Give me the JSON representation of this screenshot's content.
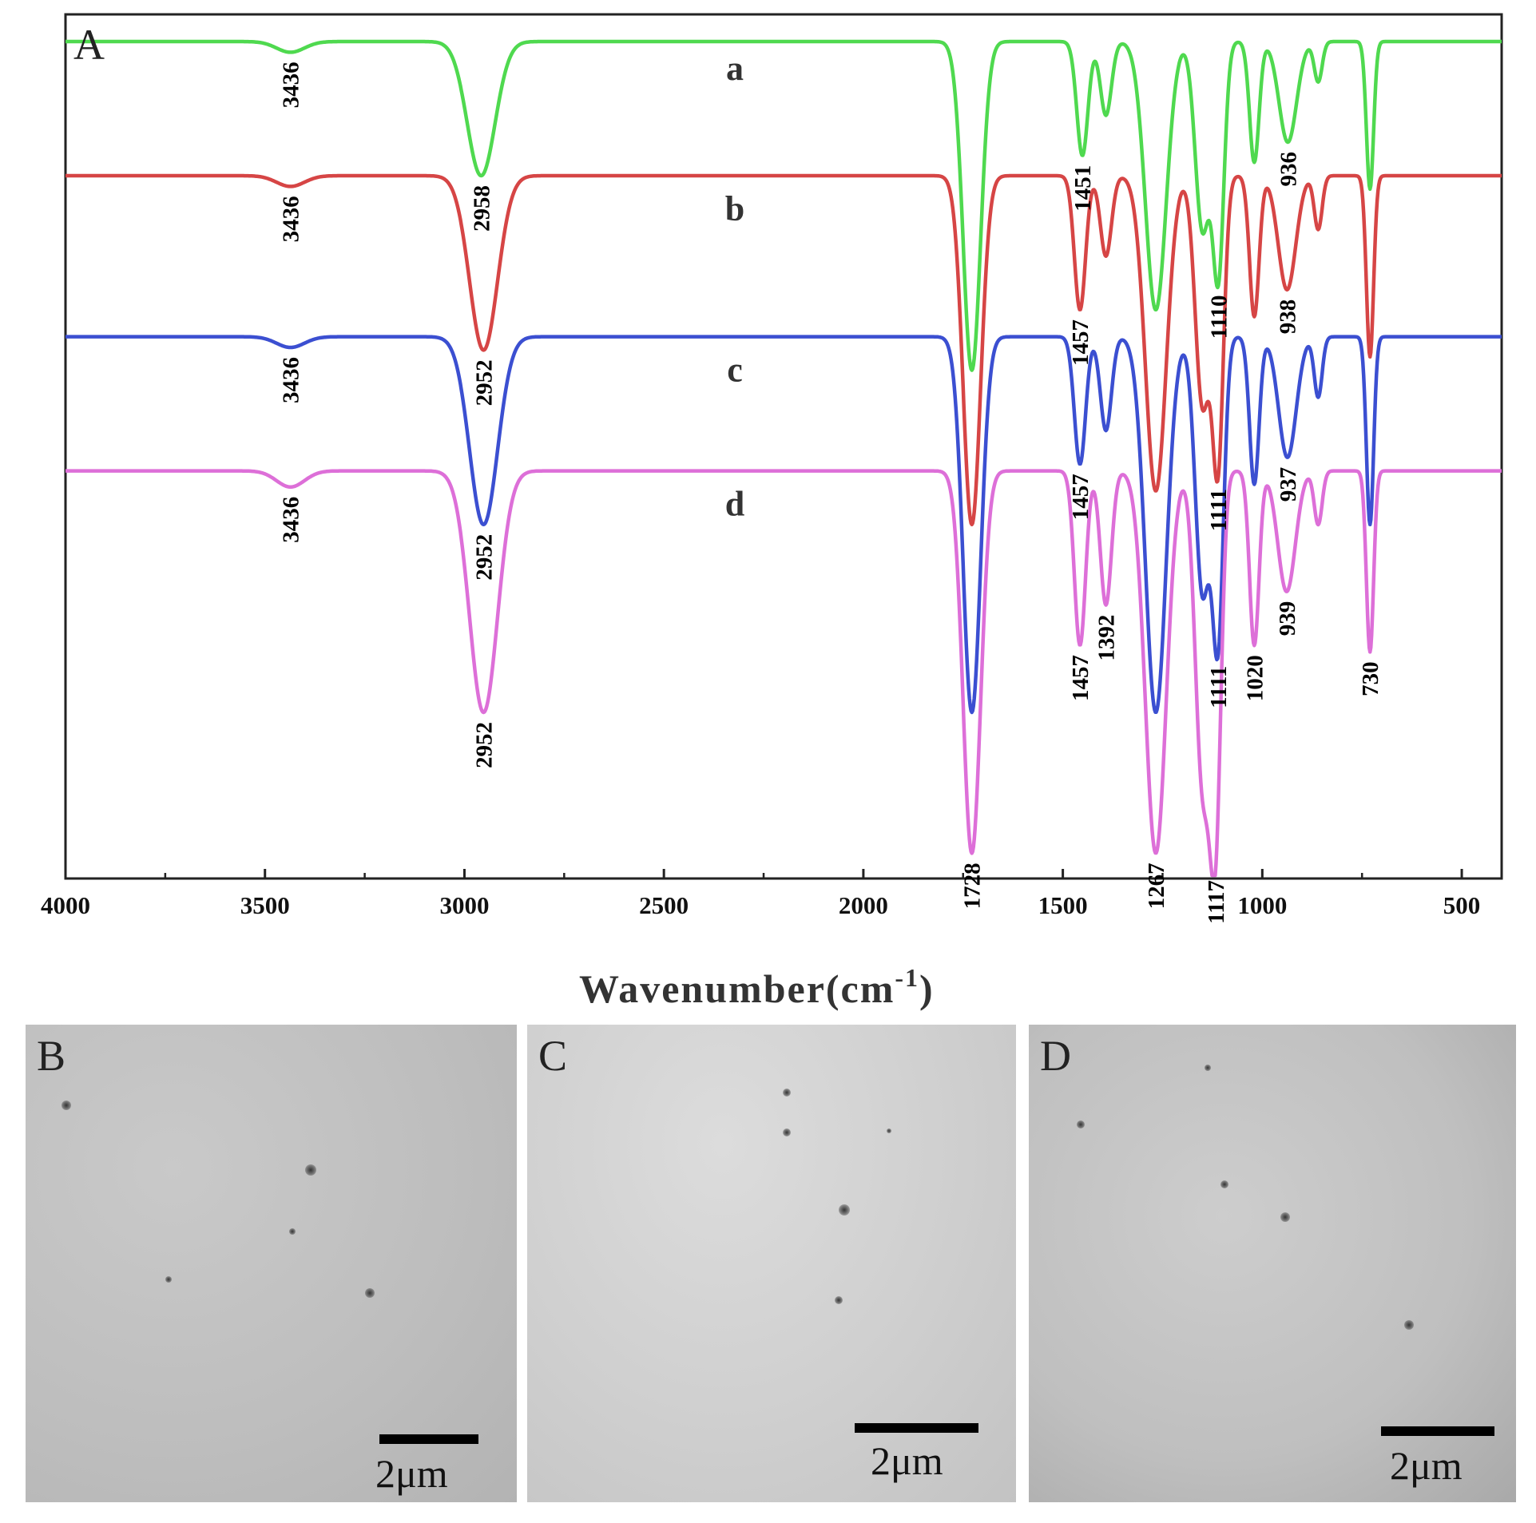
{
  "chart_data": {
    "type": "line",
    "panel_label": "A",
    "xlabel_main": "Wavenumber(cm",
    "xlabel_sup": "-1",
    "xlabel_close": ")",
    "xlim": [
      4000,
      400
    ],
    "x_ticks": [
      4000,
      3500,
      3000,
      2500,
      2000,
      1500,
      1000,
      500
    ],
    "series": [
      {
        "name": "a",
        "color": "#4fd94f",
        "base": 0.0,
        "peaks": [
          {
            "x": 3436,
            "depth": 0.08,
            "width": 35
          },
          {
            "x": 2958,
            "depth": 1.0,
            "width": 35
          },
          {
            "x": 1728,
            "depth": 2.45,
            "width": 22
          },
          {
            "x": 1451,
            "depth": 0.85,
            "width": 14
          },
          {
            "x": 1392,
            "depth": 0.55,
            "width": 14
          },
          {
            "x": 1267,
            "depth": 2.0,
            "width": 26
          },
          {
            "x": 1150,
            "depth": 1.4,
            "width": 18
          },
          {
            "x": 1110,
            "depth": 1.7,
            "width": 14
          },
          {
            "x": 1020,
            "depth": 0.9,
            "width": 12
          },
          {
            "x": 936,
            "depth": 0.75,
            "width": 22
          },
          {
            "x": 860,
            "depth": 0.3,
            "width": 10
          },
          {
            "x": 730,
            "depth": 1.1,
            "width": 9
          }
        ]
      },
      {
        "name": "b",
        "color": "#d64545",
        "base": 1.0,
        "peaks": [
          {
            "x": 3436,
            "depth": 0.08,
            "width": 35
          },
          {
            "x": 2952,
            "depth": 1.3,
            "width": 35
          },
          {
            "x": 1728,
            "depth": 2.6,
            "width": 22
          },
          {
            "x": 1457,
            "depth": 1.0,
            "width": 14
          },
          {
            "x": 1392,
            "depth": 0.6,
            "width": 14
          },
          {
            "x": 1267,
            "depth": 2.35,
            "width": 26
          },
          {
            "x": 1150,
            "depth": 1.7,
            "width": 18
          },
          {
            "x": 1111,
            "depth": 2.1,
            "width": 14
          },
          {
            "x": 1020,
            "depth": 1.05,
            "width": 12
          },
          {
            "x": 938,
            "depth": 0.85,
            "width": 22
          },
          {
            "x": 860,
            "depth": 0.4,
            "width": 10
          },
          {
            "x": 730,
            "depth": 1.35,
            "width": 9
          }
        ]
      },
      {
        "name": "c",
        "color": "#3b4fd1",
        "base": 2.2,
        "peaks": [
          {
            "x": 3436,
            "depth": 0.08,
            "width": 35
          },
          {
            "x": 2952,
            "depth": 1.4,
            "width": 35
          },
          {
            "x": 1728,
            "depth": 2.8,
            "width": 22
          },
          {
            "x": 1457,
            "depth": 0.95,
            "width": 14
          },
          {
            "x": 1392,
            "depth": 0.7,
            "width": 14
          },
          {
            "x": 1267,
            "depth": 2.8,
            "width": 26
          },
          {
            "x": 1150,
            "depth": 1.9,
            "width": 18
          },
          {
            "x": 1111,
            "depth": 2.2,
            "width": 14
          },
          {
            "x": 1020,
            "depth": 1.1,
            "width": 12
          },
          {
            "x": 937,
            "depth": 0.9,
            "width": 22
          },
          {
            "x": 860,
            "depth": 0.45,
            "width": 10
          },
          {
            "x": 730,
            "depth": 1.4,
            "width": 9
          }
        ]
      },
      {
        "name": "d",
        "color": "#dd6fd8",
        "base": 3.2,
        "peaks": [
          {
            "x": 3436,
            "depth": 0.12,
            "width": 35
          },
          {
            "x": 2952,
            "depth": 1.8,
            "width": 35
          },
          {
            "x": 1728,
            "depth": 2.85,
            "width": 22
          },
          {
            "x": 1457,
            "depth": 1.3,
            "width": 14
          },
          {
            "x": 1392,
            "depth": 1.0,
            "width": 14
          },
          {
            "x": 1267,
            "depth": 2.85,
            "width": 26
          },
          {
            "x": 1150,
            "depth": 2.3,
            "width": 18
          },
          {
            "x": 1117,
            "depth": 2.55,
            "width": 14
          },
          {
            "x": 1020,
            "depth": 1.3,
            "width": 12
          },
          {
            "x": 939,
            "depth": 0.9,
            "width": 22
          },
          {
            "x": 860,
            "depth": 0.4,
            "width": 10
          },
          {
            "x": 730,
            "depth": 1.35,
            "width": 9
          }
        ]
      }
    ],
    "peak_labels": [
      {
        "text": "3436",
        "x": 3436,
        "series": "a"
      },
      {
        "text": "3436",
        "x": 3436,
        "series": "b"
      },
      {
        "text": "3436",
        "x": 3436,
        "series": "c"
      },
      {
        "text": "3436",
        "x": 3436,
        "series": "d"
      },
      {
        "text": "2958",
        "x": 2958,
        "series": "a"
      },
      {
        "text": "2952",
        "x": 2952,
        "series": "b"
      },
      {
        "text": "2952",
        "x": 2952,
        "series": "c"
      },
      {
        "text": "2952",
        "x": 2952,
        "series": "d"
      },
      {
        "text": "1728",
        "x": 1728,
        "series": "d"
      },
      {
        "text": "1451",
        "x": 1451,
        "series": "a"
      },
      {
        "text": "1457",
        "x": 1457,
        "series": "b"
      },
      {
        "text": "1457",
        "x": 1457,
        "series": "c"
      },
      {
        "text": "1457",
        "x": 1457,
        "series": "d"
      },
      {
        "text": "1392",
        "x": 1392,
        "series": "d"
      },
      {
        "text": "1267",
        "x": 1267,
        "series": "d"
      },
      {
        "text": "1110",
        "x": 1110,
        "series": "a"
      },
      {
        "text": "1111",
        "x": 1111,
        "series": "b"
      },
      {
        "text": "1111",
        "x": 1111,
        "series": "c"
      },
      {
        "text": "1117",
        "x": 1117,
        "series": "d"
      },
      {
        "text": "1020",
        "x": 1020,
        "series": "d"
      },
      {
        "text": "936",
        "x": 936,
        "series": "a"
      },
      {
        "text": "938",
        "x": 938,
        "series": "b"
      },
      {
        "text": "937",
        "x": 937,
        "series": "c"
      },
      {
        "text": "939",
        "x": 939,
        "series": "d"
      },
      {
        "text": "730",
        "x": 730,
        "series": "d"
      }
    ]
  },
  "micrographs": [
    {
      "label": "B",
      "scale_label": "2μm"
    },
    {
      "label": "C",
      "scale_label": "2μm"
    },
    {
      "label": "D",
      "scale_label": "2μm"
    }
  ]
}
